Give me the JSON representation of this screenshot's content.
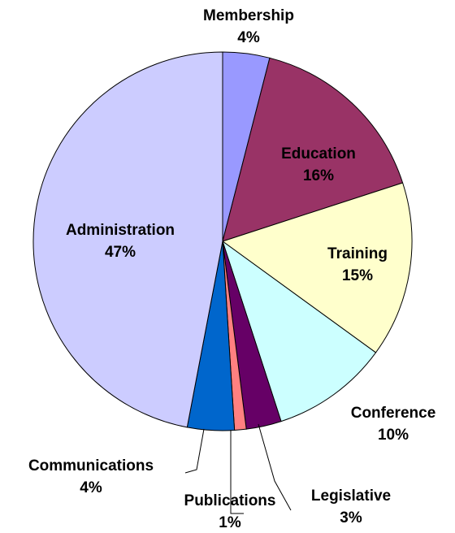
{
  "chart_data": {
    "type": "pie",
    "categories": [
      "Membership",
      "Education",
      "Training",
      "Conference",
      "Legislative",
      "Publications",
      "Communications",
      "Administration"
    ],
    "values": [
      4,
      16,
      15,
      10,
      3,
      1,
      4,
      47
    ],
    "value_labels": [
      "4%",
      "16%",
      "15%",
      "10%",
      "3%",
      "1%",
      "4%",
      "47%"
    ],
    "colors": [
      "#9999ff",
      "#993366",
      "#ffffcc",
      "#ccffff",
      "#660066",
      "#ff8080",
      "#0066cc",
      "#ccccff"
    ]
  }
}
